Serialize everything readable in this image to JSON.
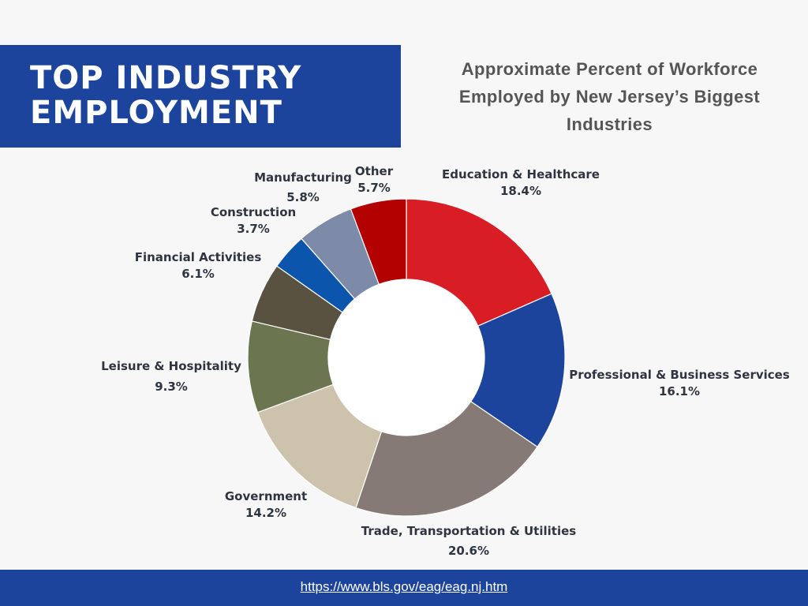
{
  "title": {
    "line1": "TOP INDUSTRY",
    "line2": "EMPLOYMENT"
  },
  "subtitle": {
    "line1": "Approximate Percent of Workforce",
    "line2": "Employed by New Jersey’s Biggest",
    "line3": "Industries"
  },
  "chart_data": {
    "type": "pie",
    "donut": true,
    "slices": [
      {
        "label": "Education & Healthcare",
        "value": 18.4,
        "value_label": "18.4%",
        "color": "#d91d24"
      },
      {
        "label": "Professional & Business Services",
        "value": 16.1,
        "value_label": "16.1%",
        "color": "#1c449c"
      },
      {
        "label": "Trade, Transportation & Utilities",
        "value": 20.6,
        "value_label": "20.6%",
        "color": "#857a76"
      },
      {
        "label": "Government",
        "value": 14.2,
        "value_label": "14.2%",
        "color": "#cdc3ad"
      },
      {
        "label": "Leisure & Hospitality",
        "value": 9.3,
        "value_label": "9.3%",
        "color": "#6b7650"
      },
      {
        "label": "Financial Activities",
        "value": 6.1,
        "value_label": "6.1%",
        "color": "#5a5240"
      },
      {
        "label": "Construction",
        "value": 3.7,
        "value_label": "3.7%",
        "color": "#0b55ad"
      },
      {
        "label": "Manufacturing",
        "value": 5.8,
        "value_label": "5.8%",
        "color": "#7d8ba8"
      },
      {
        "label": "Other",
        "value": 5.7,
        "value_label": "5.7%",
        "color": "#b30000"
      }
    ]
  },
  "footer": {
    "source_url": "https://www.bls.gov/eag/eag.nj.htm"
  }
}
